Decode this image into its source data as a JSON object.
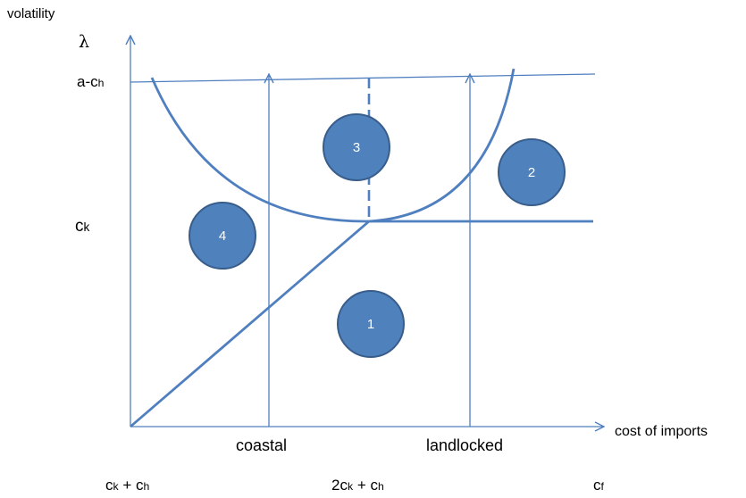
{
  "y_axis": {
    "title": "volatility",
    "symbol": "λ",
    "ticks": {
      "top": {
        "main": "a-c",
        "sub": "h"
      },
      "mid": {
        "main": "c",
        "sub": "k"
      }
    }
  },
  "x_axis": {
    "title": "cost of imports",
    "region_labels": {
      "coastal": "coastal",
      "landlocked": "landlocked"
    },
    "bottom_labels": {
      "left": {
        "a": "c",
        "a_sub": "k",
        "plus": " + ",
        "b": "c",
        "b_sub": "h"
      },
      "middle": {
        "a": "2c",
        "a_sub": "k",
        "plus": " + ",
        "b": "c",
        "b_sub": "h"
      },
      "right": {
        "a": "c",
        "a_sub": "f"
      }
    }
  },
  "regions": [
    "1",
    "2",
    "3",
    "4"
  ],
  "colors": {
    "line": "#4f7fbf",
    "circle_fill": "#4f81bd",
    "circle_stroke": "#385d8a",
    "circle_text": "#ffffff"
  }
}
